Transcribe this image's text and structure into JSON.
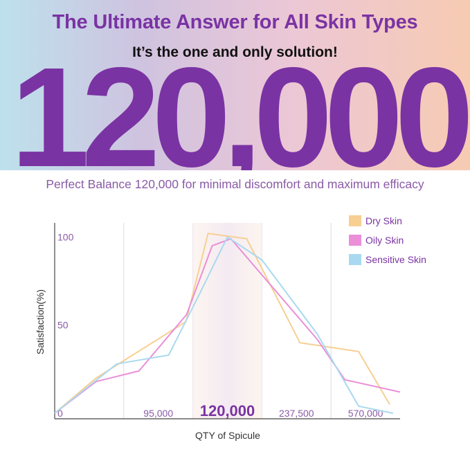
{
  "header": {
    "title": "The Ultimate Answer for All Skin Types",
    "subtitle": "It’s the one and only solution!",
    "big_number": "120,000",
    "tagline": "Perfect Balance 120,000 for minimal discomfort and maximum efficacy"
  },
  "colors": {
    "purple": "#7a33a3",
    "dry": "#f7cf93",
    "oily": "#ea8fd8",
    "sensitive": "#a9d9f0"
  },
  "chart_data": {
    "type": "line",
    "x": [
      0,
      95000,
      120000,
      237500,
      570000
    ],
    "x_tick_labels": [
      "0",
      "95,000",
      "120,000",
      "237,500",
      "570,000"
    ],
    "highlight_tick": "120,000",
    "xlabel": "QTY of Spicule",
    "ylabel": "Satisfaction(%)",
    "y_ticks": [
      50,
      100
    ],
    "ylim": [
      0,
      108
    ],
    "legend_position": "top-right",
    "series": [
      {
        "name": "Dry Skin",
        "color": "#f7cf93",
        "points": [
          [
            0,
            0
          ],
          [
            0.6,
            20
          ],
          [
            1.9,
            52
          ],
          [
            2.22,
            102
          ],
          [
            2.78,
            99
          ],
          [
            3.55,
            40
          ],
          [
            4.4,
            35
          ],
          [
            4.85,
            5
          ]
        ]
      },
      {
        "name": "Oily Skin",
        "color": "#ea8fd8",
        "points": [
          [
            0,
            0
          ],
          [
            0.6,
            18
          ],
          [
            1.22,
            24
          ],
          [
            1.91,
            56
          ],
          [
            2.28,
            95
          ],
          [
            2.55,
            99
          ],
          [
            3.8,
            42
          ],
          [
            4.2,
            19
          ],
          [
            5.0,
            12
          ]
        ]
      },
      {
        "name": "Sensitive Skin",
        "color": "#a9d9f0",
        "points": [
          [
            0,
            0
          ],
          [
            0.9,
            28
          ],
          [
            1.65,
            33
          ],
          [
            2.1,
            68
          ],
          [
            2.5,
            100
          ],
          [
            3.0,
            87
          ],
          [
            3.8,
            45
          ],
          [
            4.4,
            4
          ],
          [
            4.9,
            0
          ]
        ]
      }
    ]
  }
}
